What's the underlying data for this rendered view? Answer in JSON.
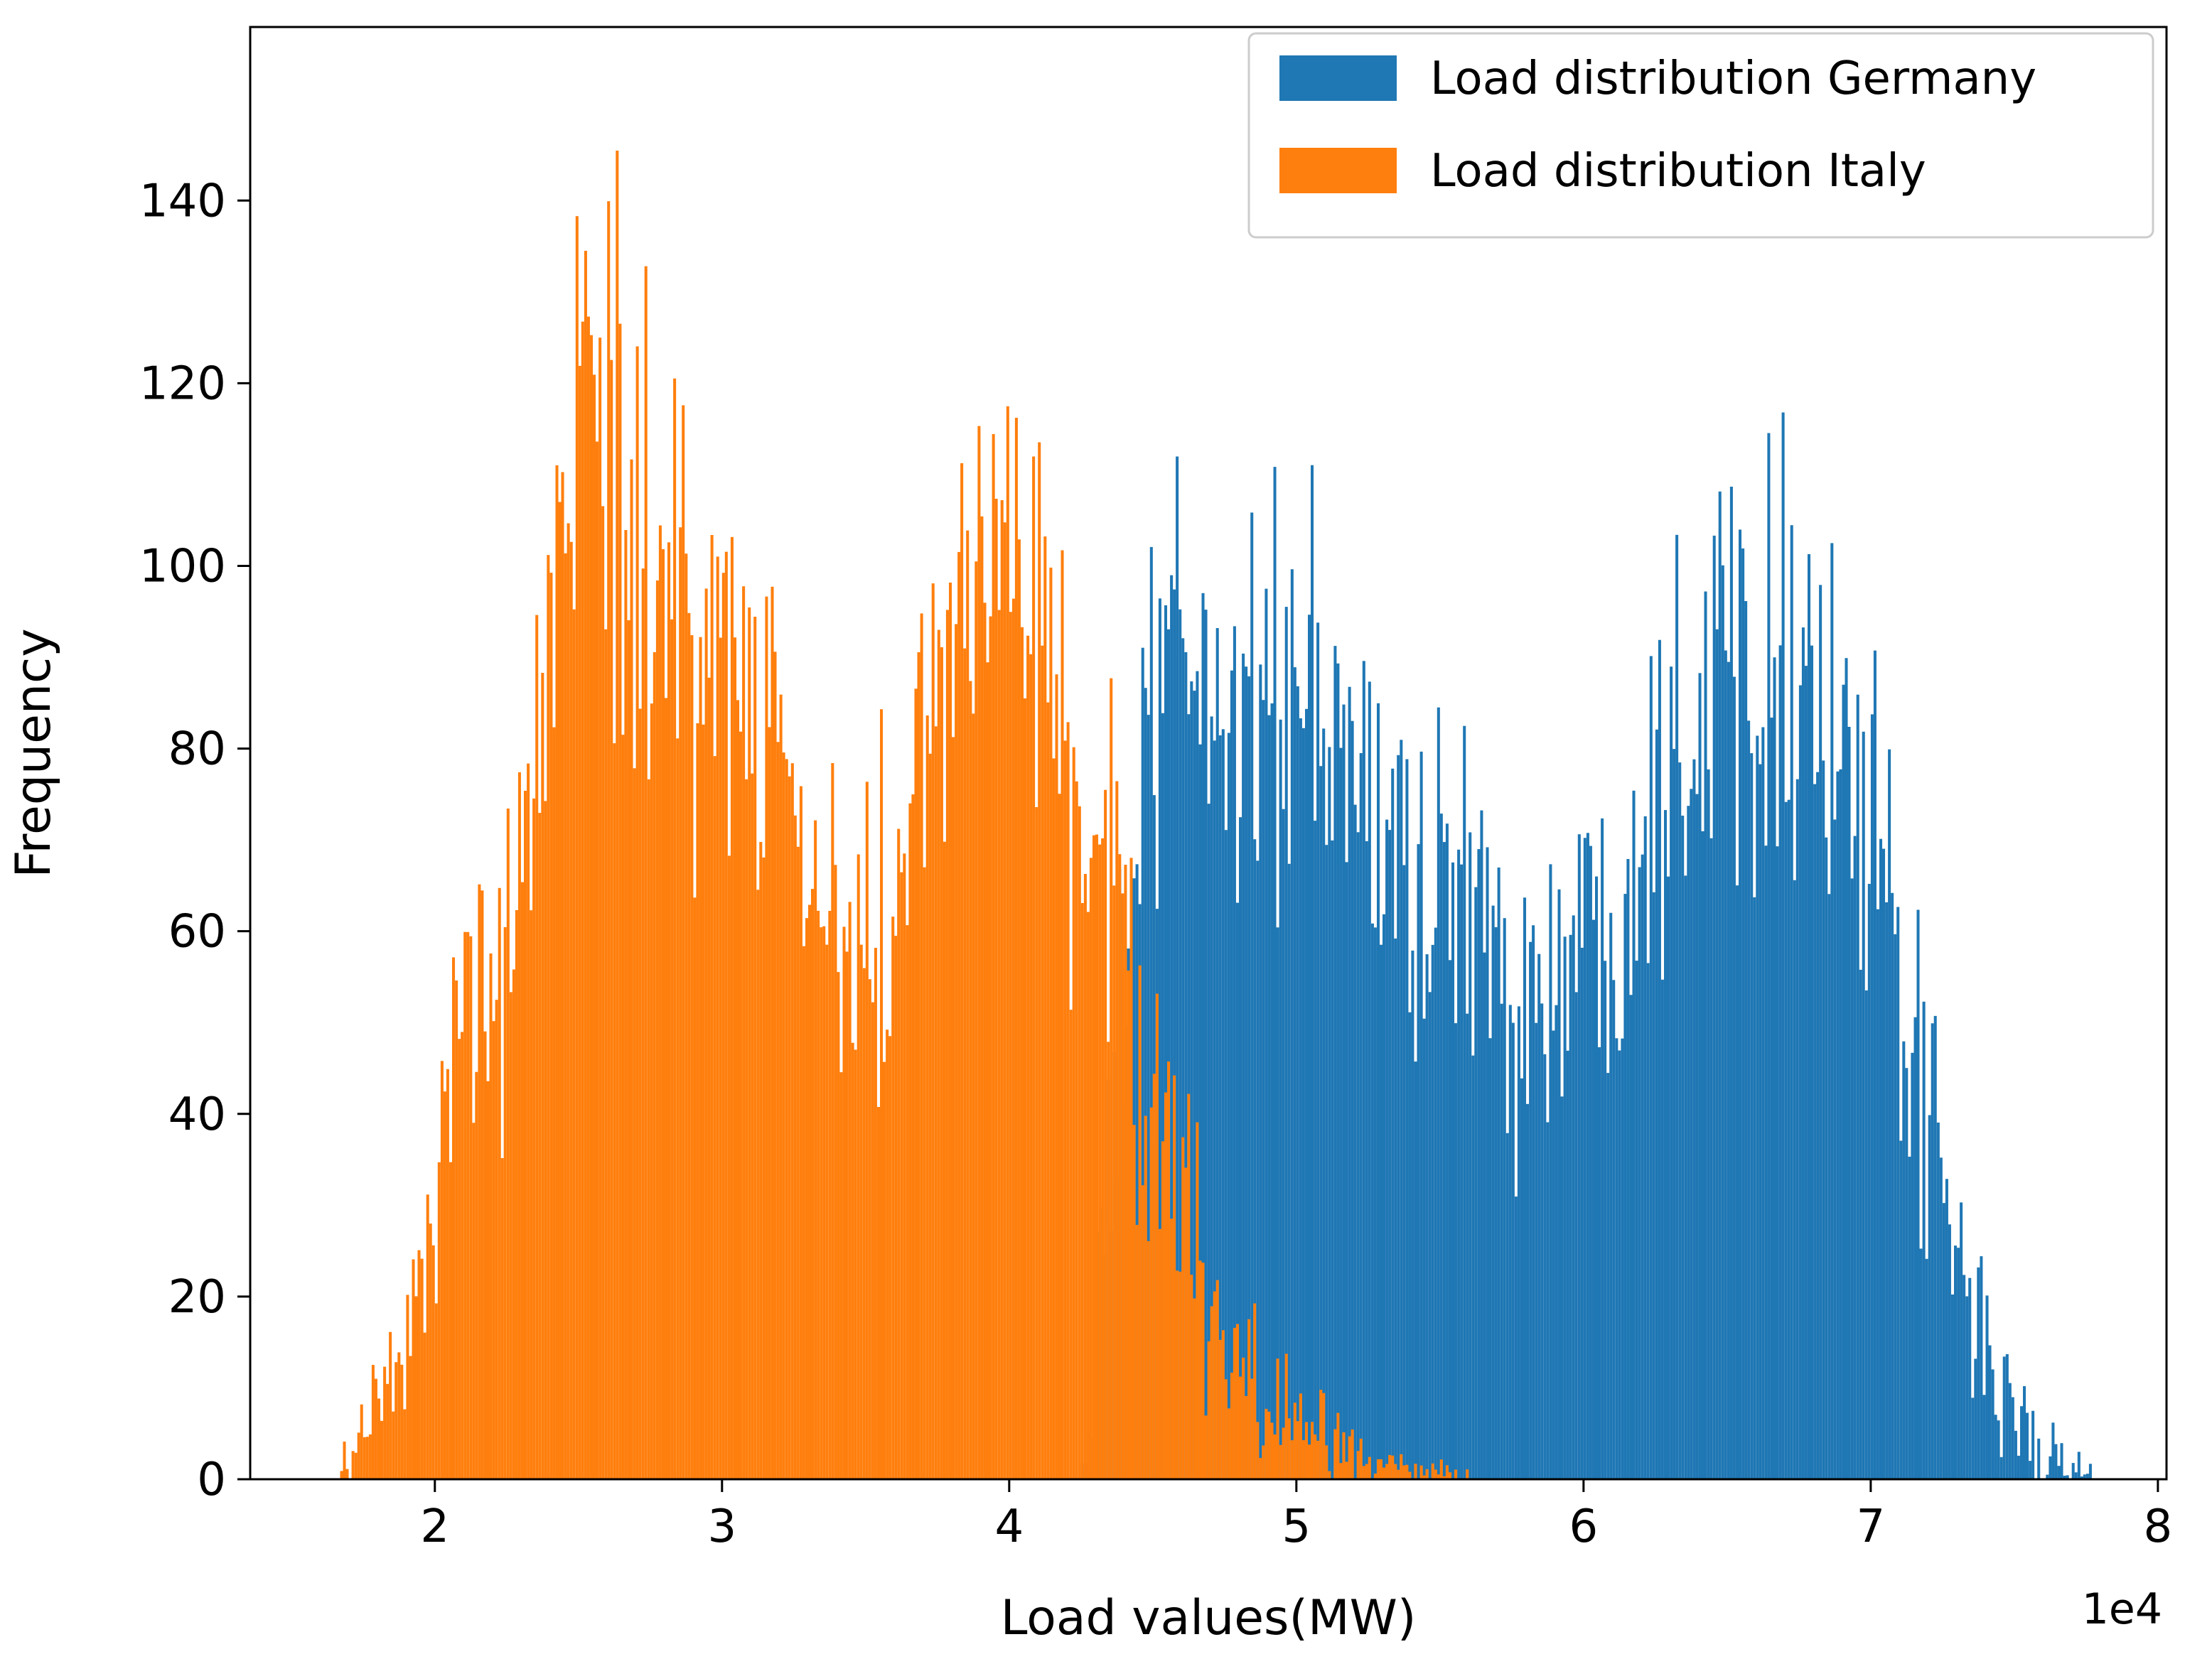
{
  "figure": {
    "background": "#ffffff",
    "axis_color": "#000000",
    "legend_border_color": "#cccccc"
  },
  "chart_data": {
    "type": "histogram",
    "title": "",
    "xlabel": "Load values(MW)",
    "ylabel": "Frequency",
    "x_offset_text": "1e4",
    "xlim": [
      1.357,
      8.03
    ],
    "ylim": [
      0,
      159
    ],
    "x_ticks": [
      2,
      3,
      4,
      5,
      6,
      7,
      8
    ],
    "y_ticks": [
      0,
      20,
      40,
      60,
      80,
      100,
      120,
      140
    ],
    "bin_width": 0.01,
    "grid": false,
    "legend_position": "upper right",
    "series": [
      {
        "name": "Load distribution Germany",
        "color": "#1f77b4",
        "range": [
          4.25,
          7.78
        ],
        "envelope": [
          [
            4.25,
            0
          ],
          [
            4.3,
            12
          ],
          [
            4.35,
            32
          ],
          [
            4.4,
            55
          ],
          [
            4.45,
            70
          ],
          [
            4.5,
            80
          ],
          [
            4.55,
            88
          ],
          [
            4.6,
            93
          ],
          [
            4.65,
            89
          ],
          [
            4.7,
            86
          ],
          [
            4.75,
            84
          ],
          [
            4.8,
            84
          ],
          [
            4.85,
            87
          ],
          [
            4.9,
            85
          ],
          [
            4.95,
            88
          ],
          [
            5.0,
            84
          ],
          [
            5.05,
            81
          ],
          [
            5.1,
            79
          ],
          [
            5.15,
            81
          ],
          [
            5.2,
            78
          ],
          [
            5.25,
            74
          ],
          [
            5.3,
            71
          ],
          [
            5.35,
            69
          ],
          [
            5.4,
            67
          ],
          [
            5.45,
            64
          ],
          [
            5.5,
            67
          ],
          [
            5.55,
            64
          ],
          [
            5.6,
            61
          ],
          [
            5.65,
            59
          ],
          [
            5.7,
            57
          ],
          [
            5.75,
            55
          ],
          [
            5.8,
            54
          ],
          [
            5.85,
            52
          ],
          [
            5.9,
            54
          ],
          [
            5.95,
            57
          ],
          [
            6.0,
            59
          ],
          [
            6.05,
            61
          ],
          [
            6.1,
            64
          ],
          [
            6.15,
            69
          ],
          [
            6.2,
            73
          ],
          [
            6.25,
            78
          ],
          [
            6.3,
            83
          ],
          [
            6.35,
            86
          ],
          [
            6.4,
            88
          ],
          [
            6.45,
            90
          ],
          [
            6.5,
            93
          ],
          [
            6.55,
            90
          ],
          [
            6.6,
            93
          ],
          [
            6.65,
            96
          ],
          [
            6.7,
            93
          ],
          [
            6.75,
            90
          ],
          [
            6.8,
            88
          ],
          [
            6.85,
            83
          ],
          [
            6.9,
            78
          ],
          [
            6.95,
            73
          ],
          [
            7.0,
            68
          ],
          [
            7.05,
            60
          ],
          [
            7.1,
            53
          ],
          [
            7.15,
            46
          ],
          [
            7.2,
            38
          ],
          [
            7.25,
            30
          ],
          [
            7.3,
            24
          ],
          [
            7.35,
            19
          ],
          [
            7.4,
            14
          ],
          [
            7.45,
            10
          ],
          [
            7.5,
            7
          ],
          [
            7.55,
            5
          ],
          [
            7.6,
            3
          ],
          [
            7.65,
            2
          ],
          [
            7.7,
            1
          ],
          [
            7.78,
            0
          ]
        ]
      },
      {
        "name": "Load distribution Italy",
        "color": "#ff7f0e",
        "range": [
          1.66,
          5.6
        ],
        "envelope": [
          [
            1.66,
            0
          ],
          [
            1.7,
            2
          ],
          [
            1.75,
            5
          ],
          [
            1.8,
            8
          ],
          [
            1.85,
            10
          ],
          [
            1.9,
            14
          ],
          [
            1.95,
            20
          ],
          [
            2.0,
            30
          ],
          [
            2.05,
            42
          ],
          [
            2.1,
            50
          ],
          [
            2.15,
            52
          ],
          [
            2.2,
            48
          ],
          [
            2.25,
            52
          ],
          [
            2.3,
            58
          ],
          [
            2.35,
            70
          ],
          [
            2.4,
            88
          ],
          [
            2.45,
            108
          ],
          [
            2.5,
            122
          ],
          [
            2.55,
            118
          ],
          [
            2.6,
            120
          ],
          [
            2.65,
            108
          ],
          [
            2.7,
            103
          ],
          [
            2.75,
            100
          ],
          [
            2.8,
            102
          ],
          [
            2.85,
            92
          ],
          [
            2.9,
            94
          ],
          [
            2.95,
            98
          ],
          [
            3.0,
            90
          ],
          [
            3.05,
            88
          ],
          [
            3.1,
            84
          ],
          [
            3.15,
            82
          ],
          [
            3.2,
            79
          ],
          [
            3.25,
            74
          ],
          [
            3.3,
            66
          ],
          [
            3.35,
            61
          ],
          [
            3.4,
            58
          ],
          [
            3.45,
            57
          ],
          [
            3.5,
            59
          ],
          [
            3.55,
            61
          ],
          [
            3.6,
            66
          ],
          [
            3.65,
            73
          ],
          [
            3.7,
            83
          ],
          [
            3.75,
            90
          ],
          [
            3.8,
            93
          ],
          [
            3.85,
            88
          ],
          [
            3.9,
            93
          ],
          [
            3.95,
            98
          ],
          [
            4.0,
            100
          ],
          [
            4.05,
            98
          ],
          [
            4.1,
            96
          ],
          [
            4.15,
            90
          ],
          [
            4.2,
            83
          ],
          [
            4.25,
            78
          ],
          [
            4.3,
            73
          ],
          [
            4.35,
            68
          ],
          [
            4.4,
            58
          ],
          [
            4.45,
            48
          ],
          [
            4.5,
            40
          ],
          [
            4.55,
            33
          ],
          [
            4.6,
            28
          ],
          [
            4.65,
            23
          ],
          [
            4.7,
            19
          ],
          [
            4.75,
            15
          ],
          [
            4.8,
            12
          ],
          [
            4.85,
            10
          ],
          [
            4.9,
            8
          ],
          [
            5.0,
            6
          ],
          [
            5.1,
            4
          ],
          [
            5.2,
            3
          ],
          [
            5.3,
            2
          ],
          [
            5.45,
            1
          ],
          [
            5.6,
            0
          ]
        ]
      }
    ]
  }
}
